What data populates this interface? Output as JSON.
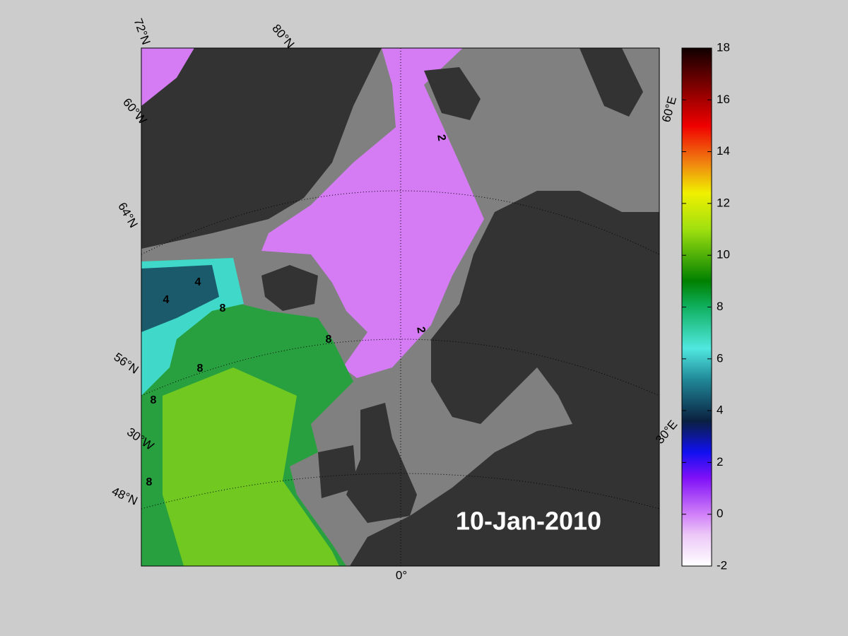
{
  "date": "10-Jan-2010",
  "graticule_labels": [
    "72°N",
    "80°N",
    "60°W",
    "64°N",
    "56°N",
    "30°W",
    "48°N",
    "0°",
    "30°E",
    "60°E"
  ],
  "contour_labels": [
    2,
    2,
    4,
    4,
    8,
    8,
    8,
    8,
    8
  ],
  "colorbar": {
    "lim": [
      -2,
      18
    ],
    "ticks": [
      -2,
      0,
      2,
      4,
      6,
      8,
      10,
      12,
      14,
      16,
      18
    ]
  }
}
